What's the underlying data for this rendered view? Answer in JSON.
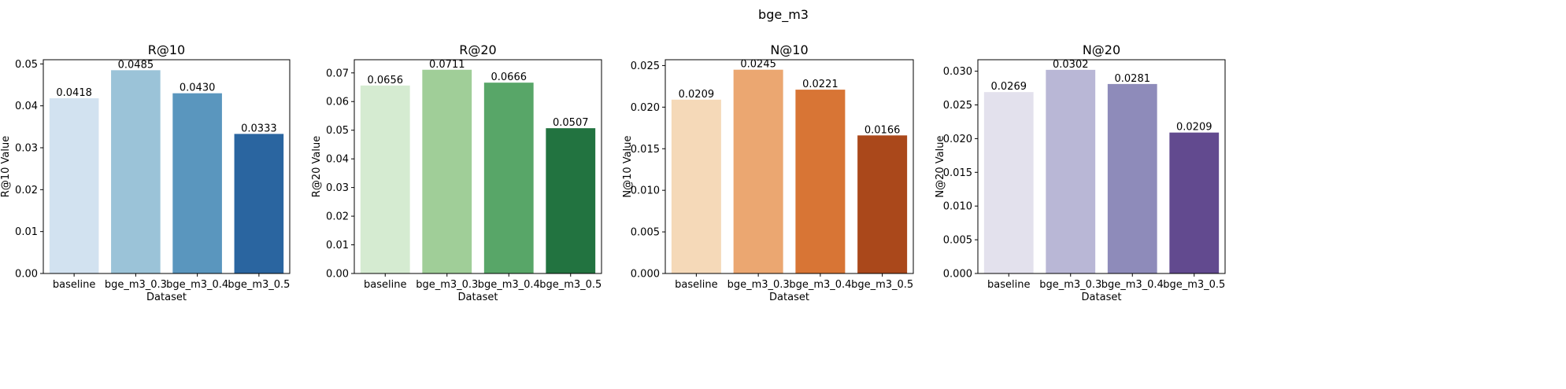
{
  "figure": {
    "title": "bge_m3"
  },
  "chart_data": [
    {
      "type": "bar",
      "title": "R@10",
      "xlabel": "Dataset",
      "ylabel": "R@10 Value",
      "categories": [
        "baseline",
        "bge_m3_0.3",
        "bge_m3_0.4",
        "bge_m3_0.5"
      ],
      "values": [
        0.0418,
        0.0485,
        0.043,
        0.0333
      ],
      "value_labels": [
        "0.0418",
        "0.0485",
        "0.0430",
        "0.0333"
      ],
      "ylim": [
        0,
        0.051
      ],
      "yticks": [
        0.0,
        0.01,
        0.02,
        0.03,
        0.04,
        0.05
      ],
      "ytick_labels": [
        "0.00",
        "0.01",
        "0.02",
        "0.03",
        "0.04",
        "0.05"
      ],
      "colors": [
        "#d2e2f0",
        "#9bc3d8",
        "#5a96be",
        "#2a65a0"
      ],
      "grid": false,
      "legend": "none"
    },
    {
      "type": "bar",
      "title": "R@20",
      "xlabel": "Dataset",
      "ylabel": "R@20 Value",
      "categories": [
        "baseline",
        "bge_m3_0.3",
        "bge_m3_0.4",
        "bge_m3_0.5"
      ],
      "values": [
        0.0656,
        0.0711,
        0.0666,
        0.0507
      ],
      "value_labels": [
        "0.0656",
        "0.0711",
        "0.0666",
        "0.0507"
      ],
      "ylim": [
        0,
        0.0746
      ],
      "yticks": [
        0.0,
        0.01,
        0.02,
        0.03,
        0.04,
        0.05,
        0.06,
        0.07
      ],
      "ytick_labels": [
        "0.00",
        "0.01",
        "0.02",
        "0.03",
        "0.04",
        "0.05",
        "0.06",
        "0.07"
      ],
      "colors": [
        "#d5ebd1",
        "#a0ce98",
        "#58a668",
        "#227340"
      ],
      "grid": false,
      "legend": "none"
    },
    {
      "type": "bar",
      "title": "N@10",
      "xlabel": "Dataset",
      "ylabel": "N@10 Value",
      "categories": [
        "baseline",
        "bge_m3_0.3",
        "bge_m3_0.4",
        "bge_m3_0.5"
      ],
      "values": [
        0.0209,
        0.0245,
        0.0221,
        0.0166
      ],
      "value_labels": [
        "0.0209",
        "0.0245",
        "0.0221",
        "0.0166"
      ],
      "ylim": [
        0,
        0.0257
      ],
      "yticks": [
        0.0,
        0.005,
        0.01,
        0.015,
        0.02,
        0.025
      ],
      "ytick_labels": [
        "0.000",
        "0.005",
        "0.010",
        "0.015",
        "0.020",
        "0.025"
      ],
      "colors": [
        "#f5d9b8",
        "#eba771",
        "#d87535",
        "#aa481b"
      ],
      "grid": false,
      "legend": "none"
    },
    {
      "type": "bar",
      "title": "N@20",
      "xlabel": "Dataset",
      "ylabel": "N@20 Value",
      "categories": [
        "baseline",
        "bge_m3_0.3",
        "bge_m3_0.4",
        "bge_m3_0.5"
      ],
      "values": [
        0.0269,
        0.0302,
        0.0281,
        0.0209
      ],
      "value_labels": [
        "0.0269",
        "0.0302",
        "0.0281",
        "0.0209"
      ],
      "ylim": [
        0,
        0.0317
      ],
      "yticks": [
        0.0,
        0.005,
        0.01,
        0.015,
        0.02,
        0.025,
        0.03
      ],
      "ytick_labels": [
        "0.000",
        "0.005",
        "0.010",
        "0.015",
        "0.020",
        "0.025",
        "0.030"
      ],
      "colors": [
        "#e3e1ed",
        "#b9b7d6",
        "#8e8bba",
        "#624a8f"
      ],
      "grid": false,
      "legend": "none"
    }
  ]
}
